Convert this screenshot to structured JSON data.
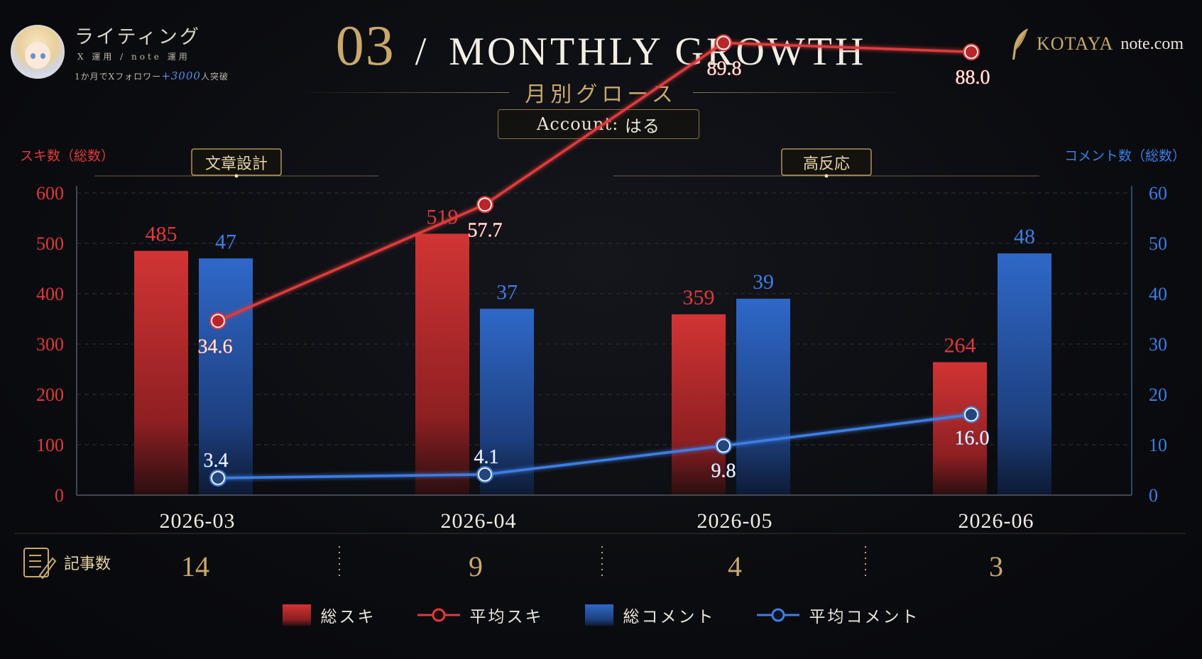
{
  "header": {
    "brand_title": "ライティング",
    "brand_sub": "X 運用 / note 運用",
    "brand_achieve_prefix": "1か月でXフォロワー",
    "brand_achieve_value": "+3000",
    "brand_achieve_suffix": "人突破",
    "title_number": "03",
    "title_slash": "/",
    "title_text": "MONTHLY GROWTH",
    "subtitle": "月別グロース",
    "account_label": "Account:",
    "account_name": "はる",
    "logo_text": "KOTAYA",
    "logo_sub": "note.com"
  },
  "colors": {
    "red": "#e03a3a",
    "blue": "#3d7ee6",
    "gold": "#c9a86a"
  },
  "chart_data": {
    "type": "bar",
    "categories": [
      "2026-03",
      "2026-04",
      "2026-05",
      "2026-06"
    ],
    "left_axis_label": "スキ数（総数）",
    "right_axis_label": "コメント数（総数）",
    "left_ylim": [
      0,
      600
    ],
    "left_ticks": [
      0,
      100,
      200,
      300,
      400,
      500,
      600
    ],
    "right_ylim": [
      0,
      60
    ],
    "right_ticks": [
      0,
      10,
      20,
      30,
      40,
      50,
      60
    ],
    "series": [
      {
        "name": "総スキ",
        "kind": "bar",
        "axis": "left",
        "color": "#e03a3a",
        "values": [
          485,
          519,
          359,
          264
        ]
      },
      {
        "name": "総コメント",
        "kind": "bar",
        "axis": "right",
        "color": "#3d7ee6",
        "values": [
          47,
          37,
          39,
          48
        ]
      },
      {
        "name": "平均スキ",
        "kind": "line",
        "axis": "right",
        "color": "#e03a3a",
        "values": [
          34.6,
          57.7,
          89.8,
          88.0
        ]
      },
      {
        "name": "平均コメント",
        "kind": "line",
        "axis": "right",
        "color": "#3d7ee6",
        "values": [
          3.4,
          4.1,
          9.8,
          16.0
        ]
      }
    ],
    "annotations": [
      "文章設計",
      "高反応"
    ],
    "grid": true,
    "legend_position": "bottom"
  },
  "articles": {
    "label": "記事数",
    "counts": [
      "14",
      "9",
      "4",
      "3"
    ]
  }
}
